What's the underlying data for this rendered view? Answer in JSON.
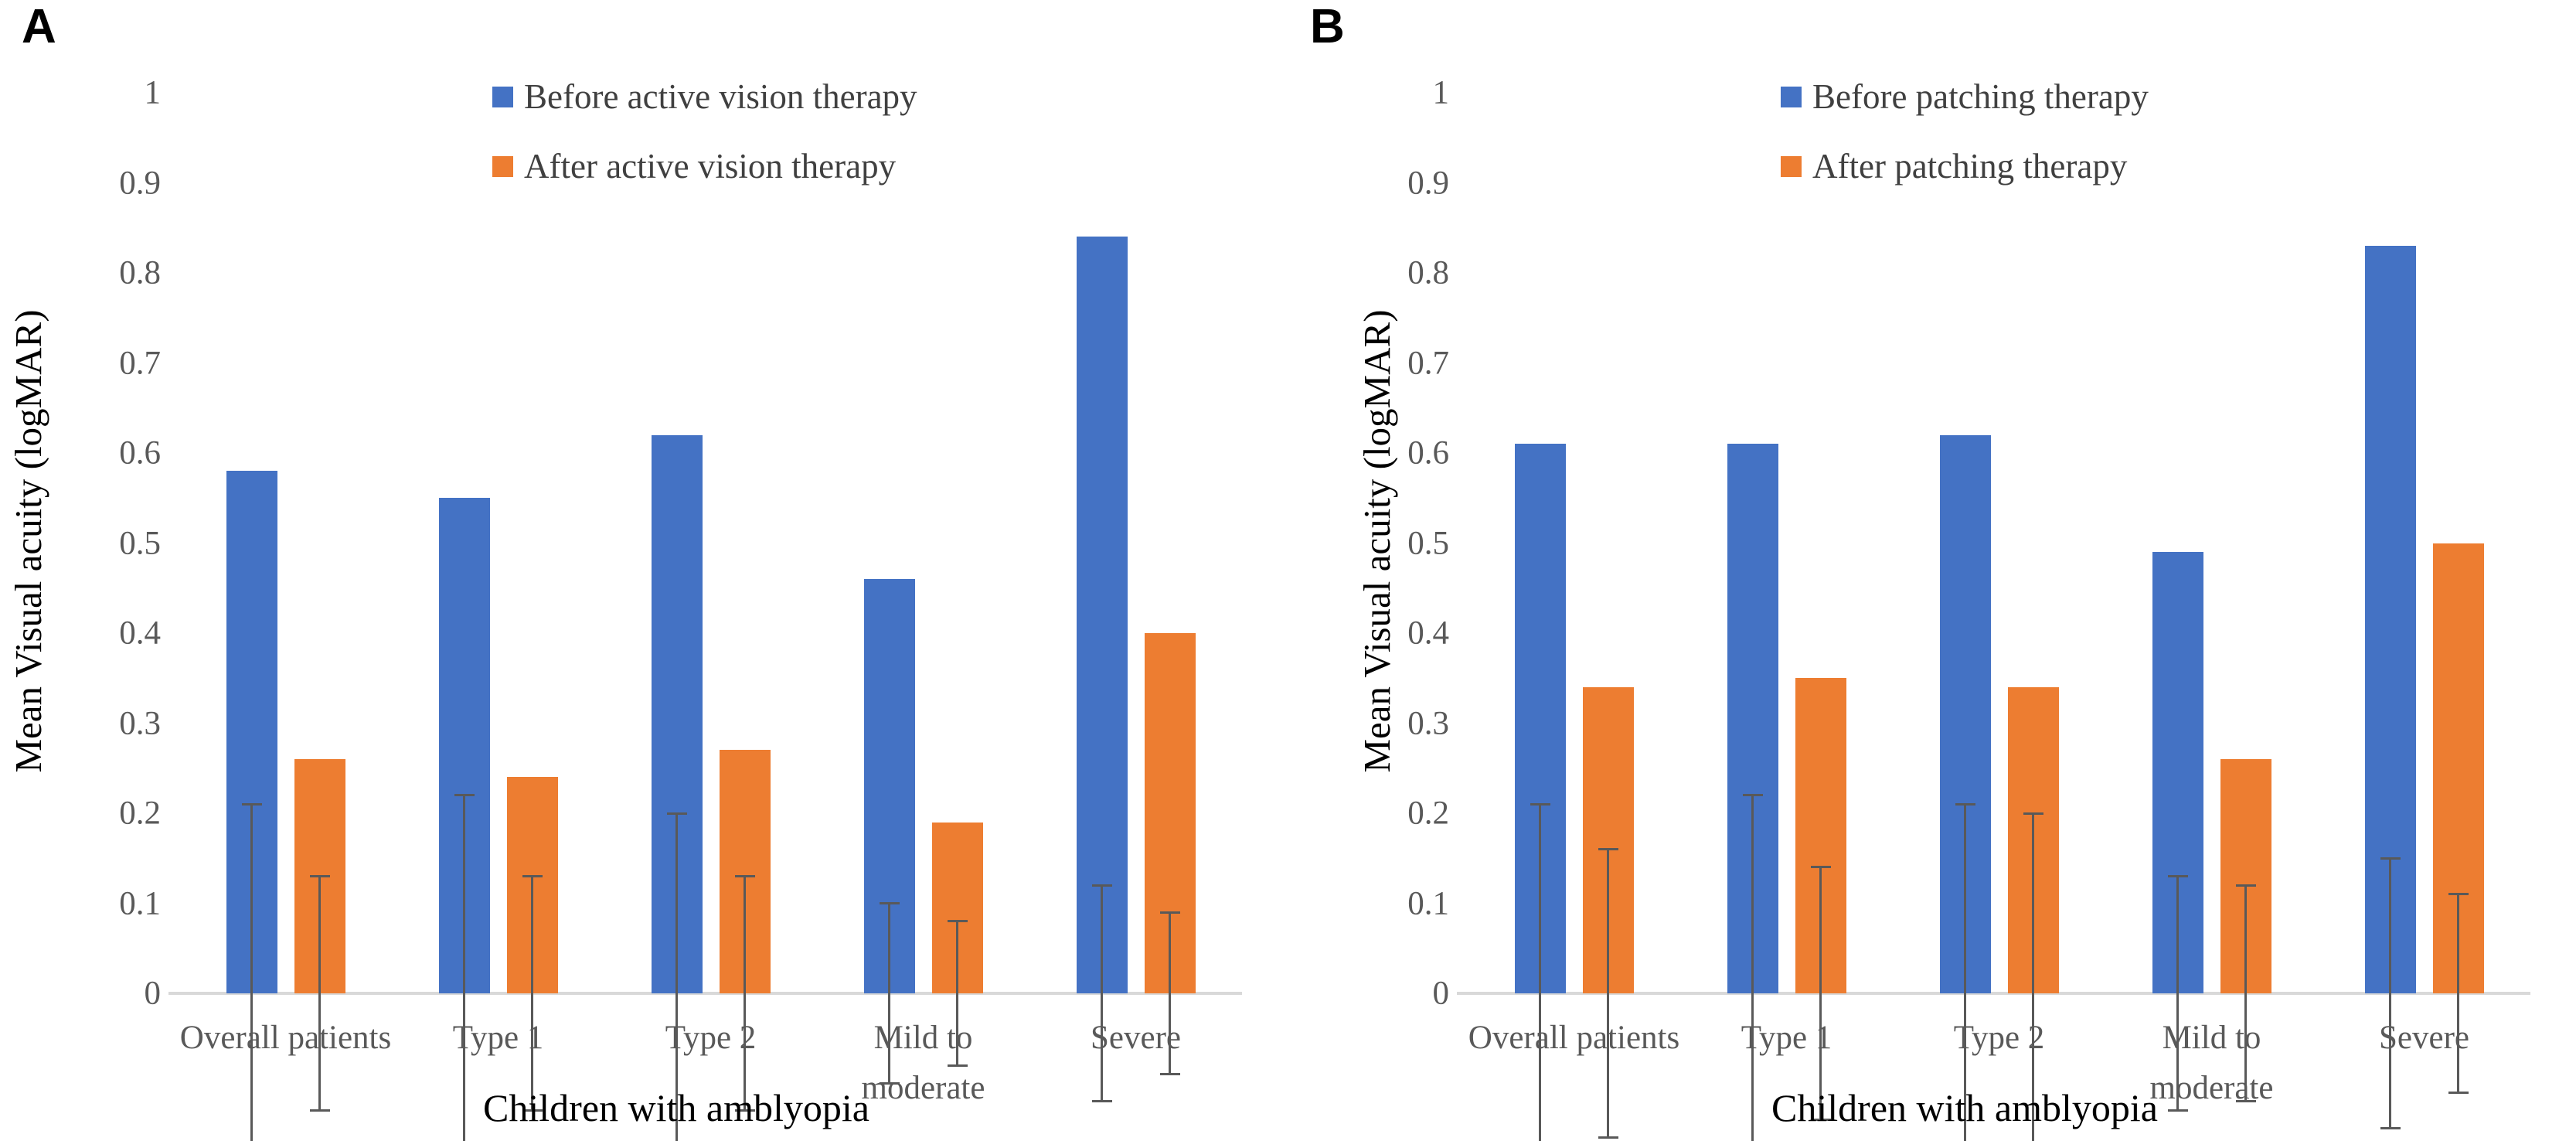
{
  "chart_data": [
    {
      "type": "bar",
      "panel": "A",
      "categories": [
        "Overall patients",
        "Type 1",
        "Type 2",
        "Mild to\nmoderate",
        "Severe"
      ],
      "series": [
        {
          "name": "Before active vision therapy",
          "color": "#4472C4",
          "values": [
            0.58,
            0.55,
            0.62,
            0.46,
            0.84
          ],
          "errors": [
            0.21,
            0.22,
            0.2,
            0.1,
            0.12
          ]
        },
        {
          "name": "After active vision therapy",
          "color": "#ED7D31",
          "values": [
            0.26,
            0.24,
            0.27,
            0.19,
            0.4
          ],
          "errors": [
            0.13,
            0.13,
            0.13,
            0.08,
            0.09
          ]
        }
      ],
      "xlabel": "Children with amblyopia",
      "ylabel": "Mean Visual acuity (logMAR)",
      "ylim": [
        0,
        1
      ],
      "ytick_labels": [
        "0",
        "0.1",
        "0.2",
        "0.3",
        "0.4",
        "0.5",
        "0.6",
        "0.7",
        "0.8",
        "0.9",
        "1"
      ],
      "grid": "off",
      "legend_position": "top-center",
      "error_bar_color": "#595959",
      "axis_line_color": "#D9D9D9",
      "tick_label_color": "#595959",
      "category_label_color": "#595959",
      "axis_title_color": "#000000",
      "legend_text_color": "#404040"
    },
    {
      "type": "bar",
      "panel": "B",
      "categories": [
        "Overall patients",
        "Type 1",
        "Type 2",
        "Mild to\nmoderate",
        "Severe"
      ],
      "series": [
        {
          "name": "Before patching therapy",
          "color": "#4472C4",
          "values": [
            0.61,
            0.61,
            0.62,
            0.49,
            0.83
          ],
          "errors": [
            0.21,
            0.22,
            0.21,
            0.13,
            0.15
          ]
        },
        {
          "name": "After patching therapy",
          "color": "#ED7D31",
          "values": [
            0.34,
            0.35,
            0.34,
            0.26,
            0.5
          ],
          "errors": [
            0.16,
            0.14,
            0.2,
            0.12,
            0.11
          ]
        }
      ],
      "xlabel": "Children with amblyopia",
      "ylabel": "Mean Visual acuity (logMAR)",
      "ylim": [
        0,
        1
      ],
      "ytick_labels": [
        "0",
        "0.1",
        "0.2",
        "0.3",
        "0.4",
        "0.5",
        "0.6",
        "0.7",
        "0.8",
        "0.9",
        "1"
      ],
      "grid": "off",
      "legend_position": "top-center",
      "error_bar_color": "#595959",
      "axis_line_color": "#D9D9D9",
      "tick_label_color": "#595959",
      "category_label_color": "#595959",
      "axis_title_color": "#000000",
      "legend_text_color": "#404040"
    }
  ]
}
